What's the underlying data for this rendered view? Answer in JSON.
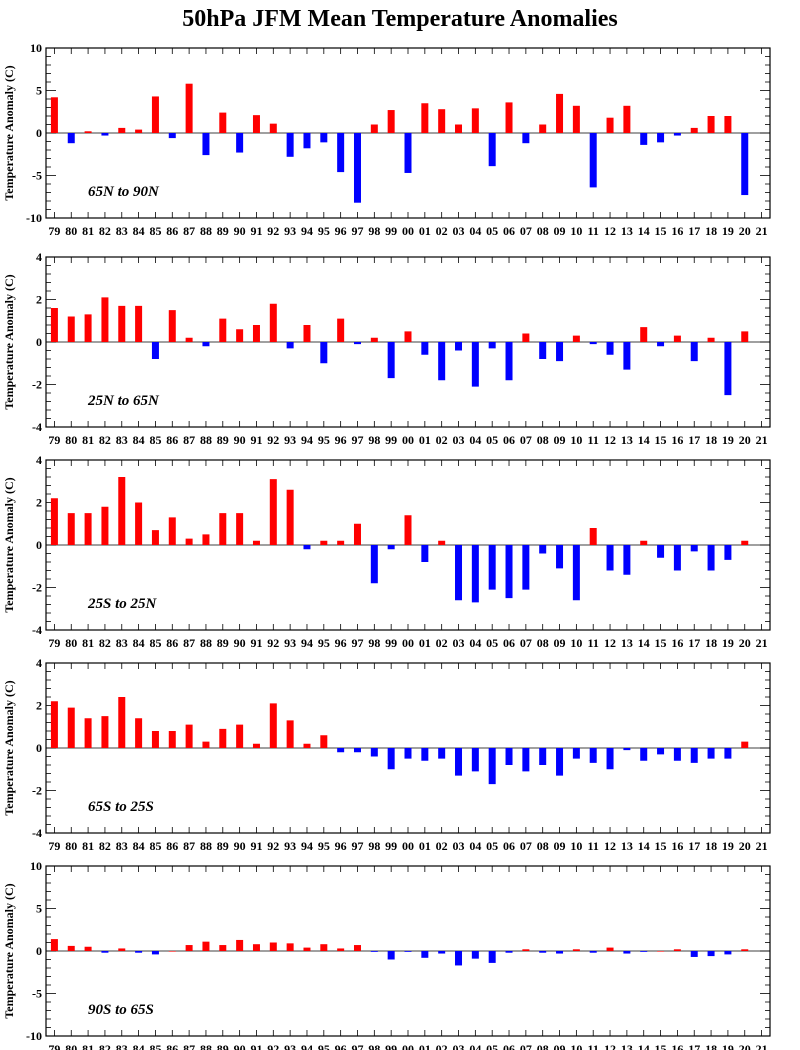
{
  "title": "50hPa JFM Mean Temperature Anomalies",
  "colors": {
    "positive": "#ff0000",
    "negative": "#0000ff",
    "axis": "#000000"
  },
  "ylabel": "Temperature Anomaly (C)",
  "x_tick_labels": [
    "79",
    "80",
    "81",
    "82",
    "83",
    "84",
    "85",
    "86",
    "87",
    "88",
    "89",
    "90",
    "91",
    "92",
    "93",
    "94",
    "95",
    "96",
    "97",
    "98",
    "99",
    "00",
    "01",
    "02",
    "03",
    "04",
    "05",
    "06",
    "07",
    "08",
    "09",
    "10",
    "11",
    "12",
    "13",
    "14",
    "15",
    "16",
    "17",
    "18",
    "19",
    "20",
    "21"
  ],
  "chart_data": [
    {
      "type": "bar",
      "region": "65N to 90N",
      "ylabel": "Temperature Anomaly (C)",
      "ylim": [
        -10,
        10
      ],
      "yticks": [
        -10,
        -5,
        0,
        5,
        10
      ],
      "years": [
        "79",
        "80",
        "81",
        "82",
        "83",
        "84",
        "85",
        "86",
        "87",
        "88",
        "89",
        "90",
        "91",
        "92",
        "93",
        "94",
        "95",
        "96",
        "97",
        "98",
        "99",
        "00",
        "01",
        "02",
        "03",
        "04",
        "05",
        "06",
        "07",
        "08",
        "09",
        "10",
        "11",
        "12",
        "13",
        "14",
        "15",
        "16",
        "17",
        "18",
        "19",
        "20"
      ],
      "values": [
        4.2,
        -1.2,
        0.2,
        -0.3,
        0.6,
        0.4,
        4.3,
        -0.6,
        5.8,
        -2.6,
        2.4,
        -2.3,
        2.1,
        1.1,
        -2.8,
        -1.8,
        -1.1,
        -4.6,
        -8.2,
        1.0,
        2.7,
        -4.7,
        3.5,
        2.8,
        1.0,
        2.9,
        -3.9,
        3.6,
        -1.2,
        1.0,
        4.6,
        3.2,
        -6.4,
        1.8,
        3.2,
        -1.4,
        -1.1,
        -0.3,
        0.6,
        2.0,
        2.0,
        -7.3
      ]
    },
    {
      "type": "bar",
      "region": "25N to 65N",
      "ylabel": "Temperature Anomaly (C)",
      "ylim": [
        -4,
        4
      ],
      "yticks": [
        -4,
        -2,
        0,
        2,
        4
      ],
      "years": [
        "79",
        "80",
        "81",
        "82",
        "83",
        "84",
        "85",
        "86",
        "87",
        "88",
        "89",
        "90",
        "91",
        "92",
        "93",
        "94",
        "95",
        "96",
        "97",
        "98",
        "99",
        "00",
        "01",
        "02",
        "03",
        "04",
        "05",
        "06",
        "07",
        "08",
        "09",
        "10",
        "11",
        "12",
        "13",
        "14",
        "15",
        "16",
        "17",
        "18",
        "19",
        "20"
      ],
      "values": [
        1.6,
        1.2,
        1.3,
        2.1,
        1.7,
        1.7,
        -0.8,
        1.5,
        0.2,
        -0.2,
        1.1,
        0.6,
        0.8,
        1.8,
        -0.3,
        0.8,
        -1.0,
        1.1,
        -0.1,
        0.2,
        -1.7,
        0.5,
        -0.6,
        -1.8,
        -0.4,
        -2.1,
        -0.3,
        -1.8,
        0.4,
        -0.8,
        -0.9,
        0.3,
        -0.1,
        -0.6,
        -1.3,
        0.7,
        -0.2,
        0.3,
        -0.9,
        0.2,
        -2.5,
        0.5
      ]
    },
    {
      "type": "bar",
      "region": "25S to 25N",
      "ylabel": "Temperature Anomaly (C)",
      "ylim": [
        -4,
        4
      ],
      "yticks": [
        -4,
        -2,
        0,
        2,
        4
      ],
      "years": [
        "79",
        "80",
        "81",
        "82",
        "83",
        "84",
        "85",
        "86",
        "87",
        "88",
        "89",
        "90",
        "91",
        "92",
        "93",
        "94",
        "95",
        "96",
        "97",
        "98",
        "99",
        "00",
        "01",
        "02",
        "03",
        "04",
        "05",
        "06",
        "07",
        "08",
        "09",
        "10",
        "11",
        "12",
        "13",
        "14",
        "15",
        "16",
        "17",
        "18",
        "19",
        "20"
      ],
      "values": [
        2.2,
        1.5,
        1.5,
        1.8,
        3.2,
        2.0,
        0.7,
        1.3,
        0.3,
        0.5,
        1.5,
        1.5,
        0.2,
        3.1,
        2.6,
        -0.2,
        0.2,
        0.2,
        1.0,
        -1.8,
        -0.2,
        1.4,
        -0.8,
        0.2,
        -2.6,
        -2.7,
        -2.1,
        -2.5,
        -2.1,
        -0.4,
        -1.1,
        -2.6,
        0.8,
        -1.2,
        -1.4,
        0.2,
        -0.6,
        -1.2,
        -0.3,
        -1.2,
        -0.7,
        0.2
      ]
    },
    {
      "type": "bar",
      "region": "65S to 25S",
      "ylabel": "Temperature Anomaly (C)",
      "ylim": [
        -4,
        4
      ],
      "yticks": [
        -4,
        -2,
        0,
        2,
        4
      ],
      "years": [
        "79",
        "80",
        "81",
        "82",
        "83",
        "84",
        "85",
        "86",
        "87",
        "88",
        "89",
        "90",
        "91",
        "92",
        "93",
        "94",
        "95",
        "96",
        "97",
        "98",
        "99",
        "00",
        "01",
        "02",
        "03",
        "04",
        "05",
        "06",
        "07",
        "08",
        "09",
        "10",
        "11",
        "12",
        "13",
        "14",
        "15",
        "16",
        "17",
        "18",
        "19",
        "20"
      ],
      "values": [
        2.2,
        1.9,
        1.4,
        1.5,
        2.4,
        1.4,
        0.8,
        0.8,
        1.1,
        0.3,
        0.9,
        1.1,
        0.2,
        2.1,
        1.3,
        0.2,
        0.6,
        -0.2,
        -0.2,
        -0.4,
        -1.0,
        -0.5,
        -0.6,
        -0.5,
        -1.3,
        -1.1,
        -1.7,
        -0.8,
        -1.1,
        -0.8,
        -1.3,
        -0.5,
        -0.7,
        -1.0,
        -0.1,
        -0.6,
        -0.3,
        -0.6,
        -0.7,
        -0.5,
        -0.5,
        0.3
      ]
    },
    {
      "type": "bar",
      "region": "90S to 65S",
      "ylabel": "Temperature Anomaly (C)",
      "ylim": [
        -10,
        10
      ],
      "yticks": [
        -10,
        -5,
        0,
        5,
        10
      ],
      "years": [
        "79",
        "80",
        "81",
        "82",
        "83",
        "84",
        "85",
        "86",
        "87",
        "88",
        "89",
        "90",
        "91",
        "92",
        "93",
        "94",
        "95",
        "96",
        "97",
        "98",
        "99",
        "00",
        "01",
        "02",
        "03",
        "04",
        "05",
        "06",
        "07",
        "08",
        "09",
        "10",
        "11",
        "12",
        "13",
        "14",
        "15",
        "16",
        "17",
        "18",
        "19",
        "20"
      ],
      "values": [
        1.4,
        0.6,
        0.5,
        -0.2,
        0.3,
        -0.2,
        -0.4,
        0.0,
        0.7,
        1.1,
        0.7,
        1.3,
        0.8,
        1.0,
        0.9,
        0.4,
        0.8,
        0.3,
        0.7,
        -0.1,
        -1.0,
        -0.1,
        -0.8,
        -0.3,
        -1.7,
        -0.9,
        -1.4,
        -0.2,
        0.2,
        -0.2,
        -0.3,
        0.2,
        -0.2,
        0.4,
        -0.3,
        -0.1,
        0.0,
        0.2,
        -0.7,
        -0.6,
        -0.4,
        0.2
      ]
    }
  ]
}
